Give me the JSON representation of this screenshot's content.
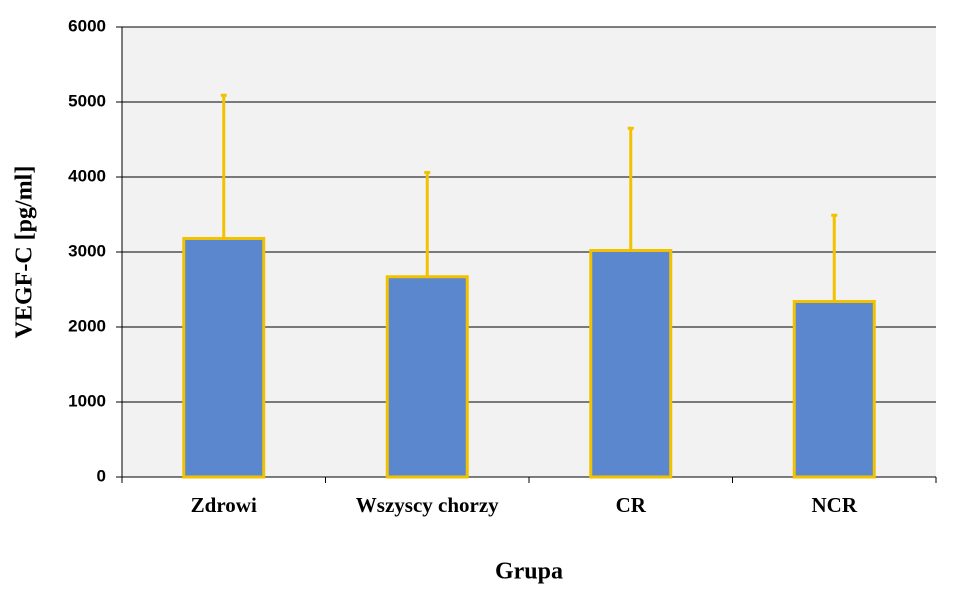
{
  "chart_data": {
    "type": "bar",
    "categories": [
      "Zdrowi",
      "Wszyscy chorzy",
      "CR",
      "NCR"
    ],
    "values": [
      3180,
      2670,
      3020,
      2340
    ],
    "errors": [
      1910,
      1390,
      1630,
      1150
    ],
    "color": "#5b87cf",
    "edge_color": "#f2c200",
    "error_color": "#f2c200",
    "ylim": [
      0,
      6000
    ],
    "yticks": [
      0,
      1000,
      2000,
      3000,
      4000,
      5000,
      6000
    ],
    "grid": true,
    "xlabel": "Grupa",
    "ylabel": "VEGF-C [pg/ml]"
  }
}
